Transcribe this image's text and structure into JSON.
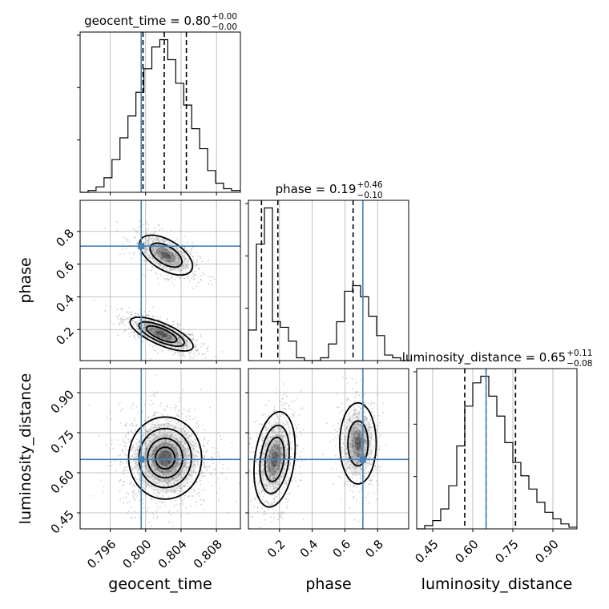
{
  "chart_data": {
    "type": "corner",
    "parameters": [
      "geocent_time",
      "phase",
      "luminosity_distance"
    ],
    "truths": [
      0.7995,
      0.71,
      0.65
    ],
    "truth_color": "#4682b4",
    "ranges": {
      "geocent_time": [
        0.7926,
        0.8107
      ],
      "phase": [
        0.01,
        0.99
      ],
      "luminosity_distance": [
        0.39,
        0.99
      ]
    },
    "ticks": {
      "geocent_time": [
        0.796,
        0.8,
        0.804,
        0.808
      ],
      "phase": [
        0.2,
        0.4,
        0.6,
        0.8
      ],
      "luminosity_distance": [
        0.45,
        0.6,
        0.75,
        0.9
      ]
    },
    "tick_labels": {
      "geocent_time": [
        "0.796",
        "0.800",
        "0.804",
        "0.808"
      ],
      "phase": [
        "0.2",
        "0.4",
        "0.6",
        "0.8"
      ],
      "luminosity_distance": [
        "0.45",
        "0.60",
        "0.75",
        "0.90"
      ]
    },
    "axis_labels": {
      "geocent_time": "geocent_time",
      "phase": "phase",
      "luminosity_distance": "luminosity_distance"
    },
    "titles": [
      {
        "param": "geocent_time",
        "text": "geocent_time = 0.80",
        "plus": "+0.00",
        "minus": "−0.00"
      },
      {
        "param": "phase",
        "text": "phase = 0.19",
        "plus": "+0.46",
        "minus": "−0.10"
      },
      {
        "param": "luminosity_distance",
        "text": "luminosity_distance = 0.65",
        "plus": "+0.11",
        "minus": "−0.08"
      }
    ],
    "quantiles": {
      "geocent_time": [
        0.7997,
        0.8021,
        0.8046
      ],
      "phase": [
        0.09,
        0.19,
        0.65
      ],
      "luminosity_distance": [
        0.57,
        0.65,
        0.76
      ]
    },
    "histograms": {
      "geocent_time": {
        "bin_edges": [
          0.7926,
          0.7935,
          0.7944,
          0.7953,
          0.7962,
          0.7971,
          0.798,
          0.7989,
          0.7998,
          0.8007,
          0.8016,
          0.8025,
          0.8034,
          0.8043,
          0.8052,
          0.8061,
          0.807,
          0.8079,
          0.8088,
          0.8097,
          0.8107
        ],
        "counts": [
          0,
          1,
          3,
          8,
          18,
          30,
          42,
          55,
          68,
          80,
          84,
          73,
          60,
          48,
          35,
          24,
          12,
          5,
          2,
          1
        ]
      },
      "phase": {
        "bin_edges": [
          0.01,
          0.059,
          0.108,
          0.157,
          0.206,
          0.255,
          0.304,
          0.353,
          0.402,
          0.451,
          0.5,
          0.549,
          0.598,
          0.647,
          0.696,
          0.745,
          0.794,
          0.843,
          0.892,
          0.941,
          0.99
        ],
        "counts": [
          22,
          84,
          110,
          28,
          24,
          14,
          2,
          0,
          0,
          2,
          12,
          28,
          50,
          54,
          46,
          32,
          18,
          4,
          2,
          0
        ]
      },
      "luminosity_distance": {
        "bin_edges": [
          0.39,
          0.42,
          0.45,
          0.48,
          0.51,
          0.54,
          0.57,
          0.6,
          0.63,
          0.66,
          0.69,
          0.72,
          0.75,
          0.78,
          0.81,
          0.84,
          0.87,
          0.9,
          0.93,
          0.96,
          0.99
        ],
        "counts": [
          0,
          2,
          5,
          12,
          26,
          50,
          74,
          88,
          92,
          80,
          68,
          52,
          40,
          32,
          24,
          16,
          10,
          6,
          3,
          1
        ]
      }
    },
    "scatter": [
      {
        "x": "geocent_time",
        "y": "phase",
        "clusters": [
          {
            "cx": 0.8018,
            "cy": 0.172,
            "sx": 0.0019,
            "sy": 0.055,
            "rho": -0.72,
            "n": 900,
            "levels": [
              [
                3.2,
                1.25
              ],
              [
                2.3,
                0.9
              ],
              [
                1.5,
                0.6
              ]
            ]
          },
          {
            "cx": 0.8023,
            "cy": 0.655,
            "sx": 0.0016,
            "sy": 0.065,
            "rho": -0.55,
            "n": 650,
            "levels": [
              [
                2.5,
                1.25
              ],
              [
                1.5,
                0.75
              ]
            ]
          }
        ]
      },
      {
        "x": "geocent_time",
        "y": "luminosity_distance",
        "clusters": [
          {
            "cx": 0.8022,
            "cy": 0.655,
            "sx": 0.0022,
            "sy": 0.082,
            "rho": 0.0,
            "n": 1500,
            "levels": [
              [
                2.6,
                1.25
              ],
              [
                1.9,
                0.9
              ],
              [
                1.25,
                0.6
              ],
              [
                0.7,
                0.33
              ]
            ]
          }
        ]
      },
      {
        "x": "phase",
        "y": "luminosity_distance",
        "clusters": [
          {
            "cx": 0.17,
            "cy": 0.65,
            "sx": 0.06,
            "sy": 0.085,
            "rho": 0.25,
            "n": 900,
            "levels": [
              [
                2.2,
                1.4
              ],
              [
                1.6,
                1.0
              ],
              [
                1.0,
                0.65
              ]
            ]
          },
          {
            "cx": 0.68,
            "cy": 0.71,
            "sx": 0.055,
            "sy": 0.075,
            "rho": 0.0,
            "n": 700,
            "levels": [
              [
                1.8,
                1.35
              ],
              [
                1.0,
                0.75
              ]
            ]
          }
        ]
      }
    ]
  }
}
